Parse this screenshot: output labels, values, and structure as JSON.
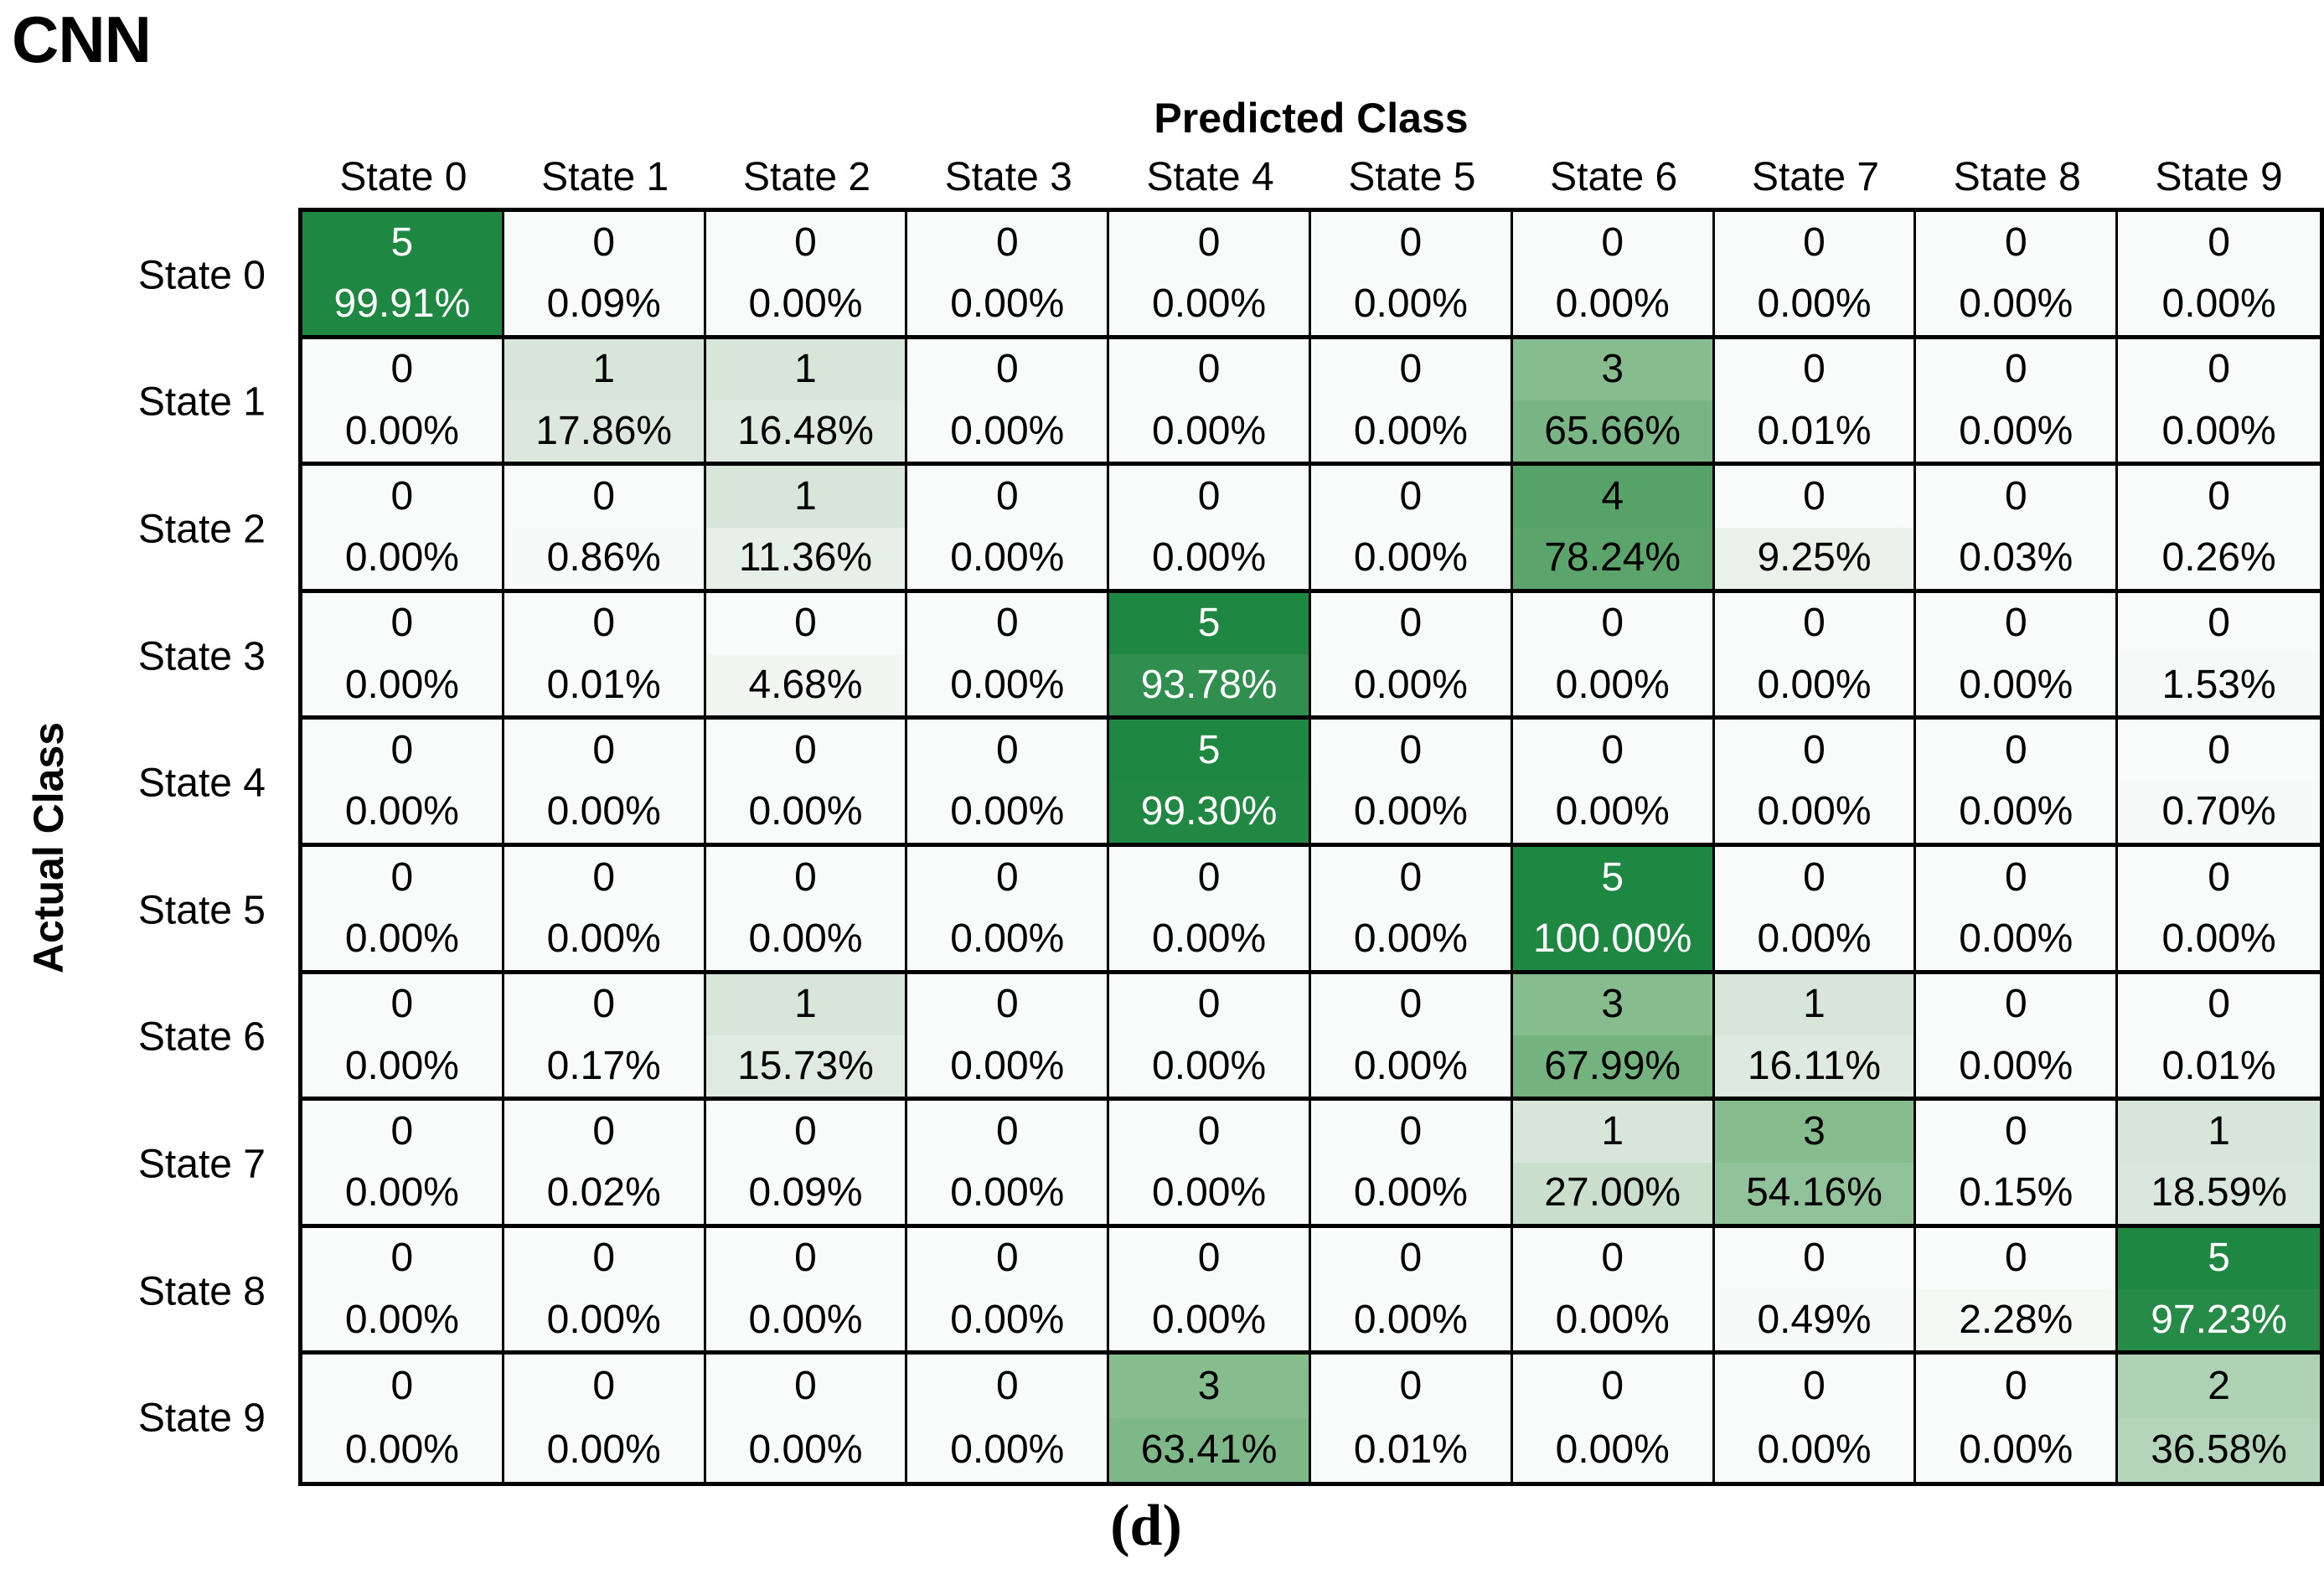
{
  "title": "CNN",
  "axes": {
    "x": "Predicted Class",
    "y": "Actual Class"
  },
  "caption": "(d)",
  "colors": {
    "border": "#000000",
    "text_dark": "#000000",
    "text_light": "#ffffff",
    "cmap_stops": [
      {
        "t": 0.0,
        "color": "#f9fbfa"
      },
      {
        "t": 0.2,
        "color": "#d8e6da"
      },
      {
        "t": 0.4,
        "color": "#aed2b3"
      },
      {
        "t": 0.6,
        "color": "#87bc8f"
      },
      {
        "t": 0.8,
        "color": "#57a268"
      },
      {
        "t": 1.0,
        "color": "#1e8742"
      }
    ]
  },
  "chart_data": {
    "type": "heatmap",
    "subtype": "confusion-matrix",
    "x_categories": [
      "State 0",
      "State 1",
      "State 2",
      "State 3",
      "State 4",
      "State 5",
      "State 6",
      "State 7",
      "State 8",
      "State 9"
    ],
    "y_categories": [
      "State 0",
      "State 1",
      "State 2",
      "State 3",
      "State 4",
      "State 5",
      "State 6",
      "State 7",
      "State 8",
      "State 9"
    ],
    "max_count": 5,
    "counts": [
      [
        5,
        0,
        0,
        0,
        0,
        0,
        0,
        0,
        0,
        0
      ],
      [
        0,
        1,
        1,
        0,
        0,
        0,
        3,
        0,
        0,
        0
      ],
      [
        0,
        0,
        1,
        0,
        0,
        0,
        4,
        0,
        0,
        0
      ],
      [
        0,
        0,
        0,
        0,
        5,
        0,
        0,
        0,
        0,
        0
      ],
      [
        0,
        0,
        0,
        0,
        5,
        0,
        0,
        0,
        0,
        0
      ],
      [
        0,
        0,
        0,
        0,
        0,
        0,
        5,
        0,
        0,
        0
      ],
      [
        0,
        0,
        1,
        0,
        0,
        0,
        3,
        1,
        0,
        0
      ],
      [
        0,
        0,
        0,
        0,
        0,
        0,
        1,
        3,
        0,
        1
      ],
      [
        0,
        0,
        0,
        0,
        0,
        0,
        0,
        0,
        0,
        5
      ],
      [
        0,
        0,
        0,
        0,
        3,
        0,
        0,
        0,
        0,
        2
      ]
    ],
    "percents": [
      [
        99.91,
        0.09,
        0.0,
        0.0,
        0.0,
        0.0,
        0.0,
        0.0,
        0.0,
        0.0
      ],
      [
        0.0,
        17.86,
        16.48,
        0.0,
        0.0,
        0.0,
        65.66,
        0.01,
        0.0,
        0.0
      ],
      [
        0.0,
        0.86,
        11.36,
        0.0,
        0.0,
        0.0,
        78.24,
        9.25,
        0.03,
        0.26
      ],
      [
        0.0,
        0.01,
        4.68,
        0.0,
        93.78,
        0.0,
        0.0,
        0.0,
        0.0,
        1.53
      ],
      [
        0.0,
        0.0,
        0.0,
        0.0,
        99.3,
        0.0,
        0.0,
        0.0,
        0.0,
        0.7
      ],
      [
        0.0,
        0.0,
        0.0,
        0.0,
        0.0,
        0.0,
        100.0,
        0.0,
        0.0,
        0.0
      ],
      [
        0.0,
        0.17,
        15.73,
        0.0,
        0.0,
        0.0,
        67.99,
        16.11,
        0.0,
        0.01
      ],
      [
        0.0,
        0.02,
        0.09,
        0.0,
        0.0,
        0.0,
        27.0,
        54.16,
        0.15,
        18.59
      ],
      [
        0.0,
        0.0,
        0.0,
        0.0,
        0.0,
        0.0,
        0.0,
        0.49,
        2.28,
        97.23
      ],
      [
        0.0,
        0.0,
        0.0,
        0.0,
        63.41,
        0.01,
        0.0,
        0.0,
        0.0,
        36.58
      ]
    ]
  }
}
